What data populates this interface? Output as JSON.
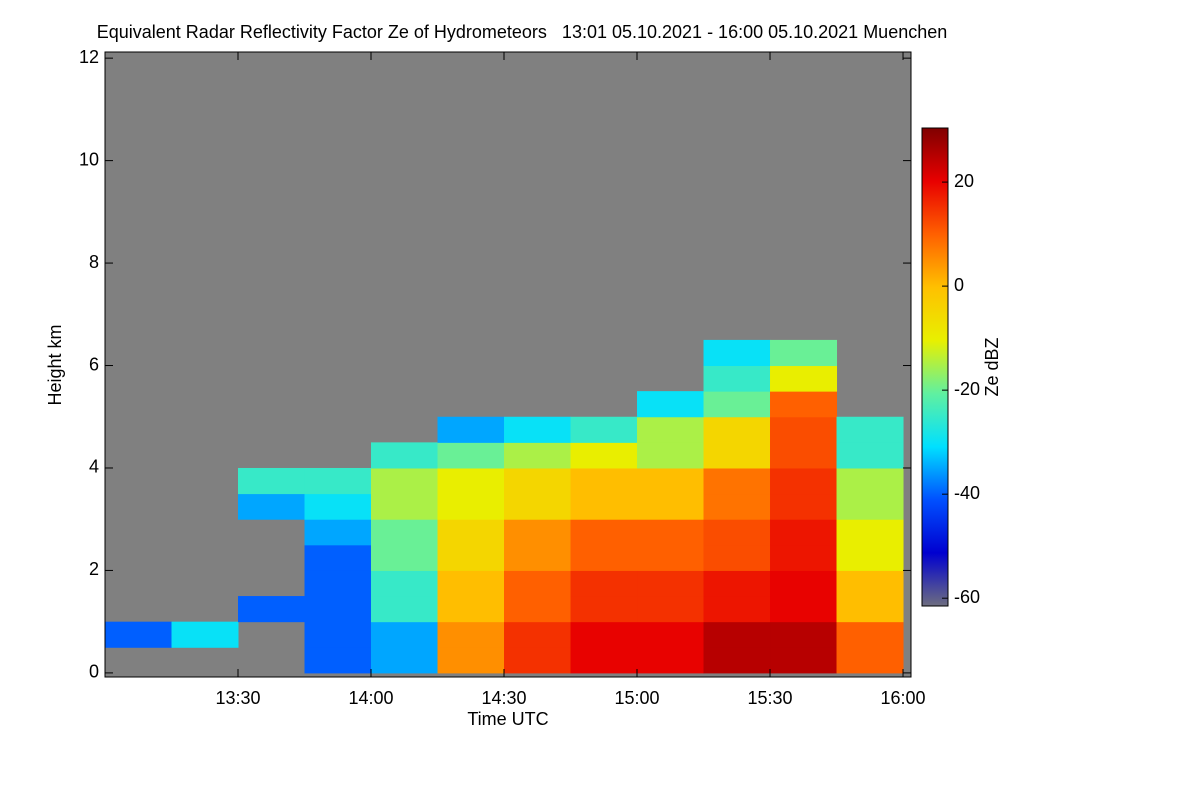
{
  "chart_data": {
    "type": "heatmap",
    "title": "Equivalent Radar Reflectivity Factor Ze of Hydrometeors   13:01 05.10.2021 - 16:00 05.10.2021 Muenchen",
    "x_label": "Time UTC",
    "y_label": "Height km",
    "colorbar_label": "Ze dBZ",
    "background": "#808080",
    "xlim": [
      13.0,
      16.03
    ],
    "ylim": [
      -0.08,
      12.12
    ],
    "zlim": [
      -61.5,
      30.4
    ],
    "xticks": [
      {
        "value": 13.5,
        "label": "13:30"
      },
      {
        "value": 14.0,
        "label": "14:00"
      },
      {
        "value": 14.5,
        "label": "14:30"
      },
      {
        "value": 15.0,
        "label": "15:00"
      },
      {
        "value": 15.5,
        "label": "15:30"
      },
      {
        "value": 16.0,
        "label": "16:00"
      }
    ],
    "yticks": [
      0,
      2,
      4,
      6,
      8,
      10,
      12
    ],
    "zticks": [
      -60,
      -40,
      -20,
      0,
      20
    ],
    "colormap": [
      "#6e6e80",
      "#0000d0",
      "#0050ff",
      "#00e0ff",
      "#60f0a0",
      "#e8f000",
      "#ffc000",
      "#ff6000",
      "#e80000",
      "#800000"
    ],
    "x_bins": [
      13.0,
      13.25,
      13.5,
      13.75,
      14.0,
      14.25,
      14.5,
      14.75,
      15.0,
      15.25,
      15.5,
      15.75,
      16.0
    ],
    "y_bins": [
      0,
      0.5,
      1,
      1.5,
      2,
      2.5,
      3,
      3.5,
      4,
      4.5,
      5,
      5.5,
      6,
      6.5,
      7
    ],
    "values": [
      [
        null,
        -40,
        null,
        null,
        null,
        null,
        null,
        null,
        null,
        null,
        null,
        null,
        null,
        null
      ],
      [
        null,
        -30,
        null,
        null,
        null,
        null,
        null,
        null,
        null,
        null,
        null,
        null,
        null,
        null
      ],
      [
        null,
        null,
        -40,
        null,
        null,
        null,
        -35,
        -25,
        null,
        null,
        null,
        null,
        null,
        null
      ],
      [
        -40,
        -40,
        -40,
        -40,
        -40,
        -35,
        -30,
        -25,
        null,
        null,
        null,
        null,
        null,
        null
      ],
      [
        -35,
        -35,
        -25,
        -25,
        -20,
        -20,
        -15,
        -15,
        -25,
        null,
        null,
        null,
        null,
        null
      ],
      [
        5,
        5,
        0,
        0,
        -5,
        -5,
        -10,
        -10,
        -20,
        -35,
        null,
        null,
        null,
        null
      ],
      [
        15,
        15,
        10,
        10,
        5,
        5,
        -5,
        -5,
        -15,
        -30,
        null,
        null,
        null,
        null
      ],
      [
        20,
        20,
        15,
        15,
        10,
        10,
        0,
        0,
        -10,
        -25,
        null,
        null,
        null,
        null
      ],
      [
        20,
        20,
        15,
        15,
        10,
        10,
        0,
        0,
        -15,
        -15,
        -30,
        null,
        null,
        null
      ],
      [
        25,
        25,
        18,
        18,
        12,
        12,
        8,
        8,
        -5,
        -5,
        -20,
        -25,
        -30,
        null
      ],
      [
        25,
        25,
        20,
        20,
        18,
        18,
        15,
        15,
        12,
        12,
        10,
        -10,
        -20,
        null
      ],
      [
        10,
        10,
        0,
        0,
        -10,
        -10,
        -15,
        -15,
        -25,
        -25,
        null,
        null,
        null,
        null
      ]
    ]
  }
}
